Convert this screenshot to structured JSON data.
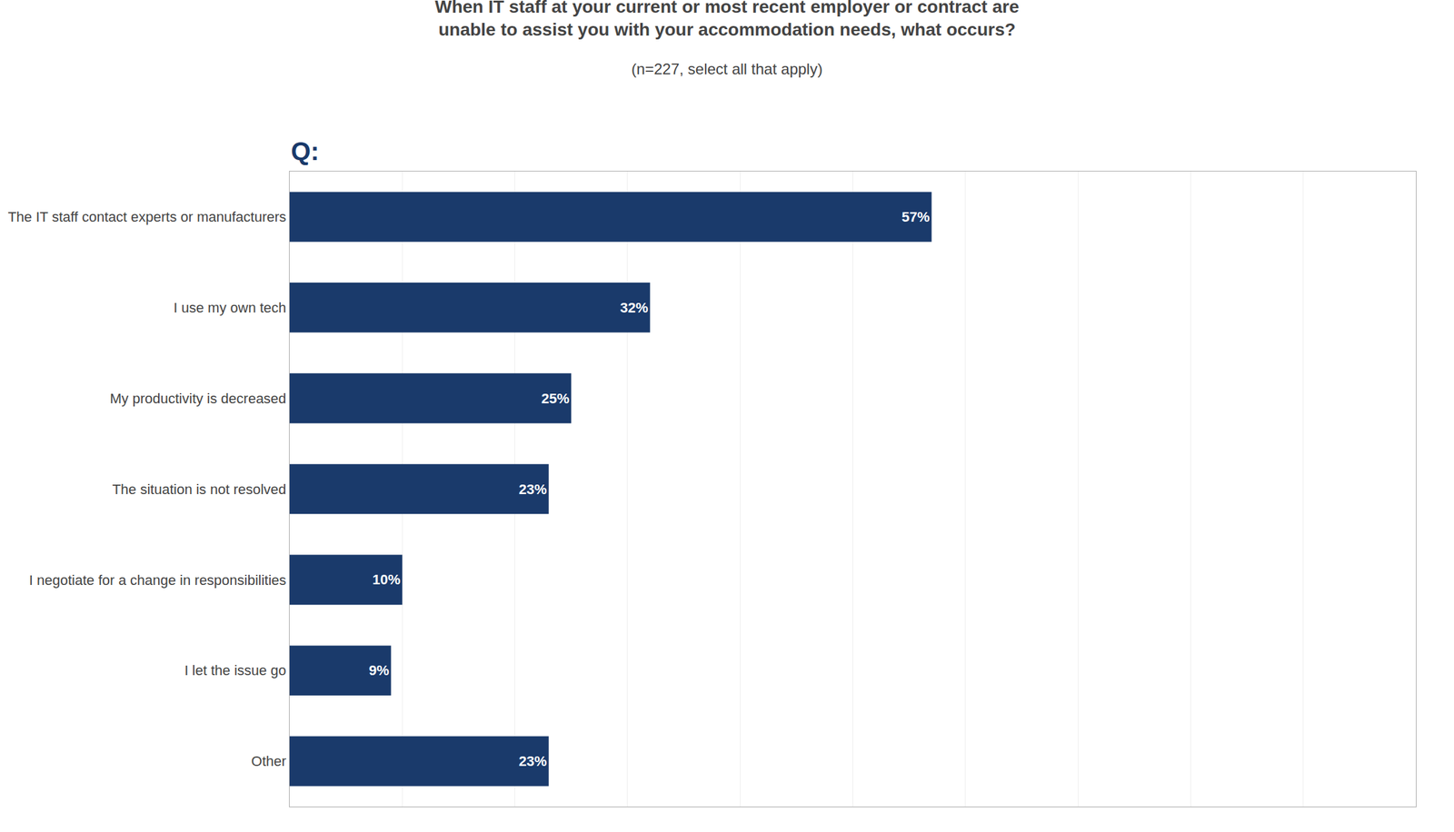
{
  "chart_data": {
    "type": "bar",
    "orientation": "horizontal",
    "title": "When IT staff at your current or most recent employer or contract are\nunable to assist you with your accommodation needs, what occurs?",
    "subtitle": "(n=227, select all that apply)",
    "annotations": [
      "Q:"
    ],
    "categories": [
      "The IT staff contact experts or manufacturers",
      "I use my own tech",
      "My productivity is decreased",
      "The situation is not resolved",
      "I negotiate for a change in responsibilities",
      "I let the issue go",
      "Other"
    ],
    "values": [
      57,
      32,
      25,
      23,
      10,
      9,
      23
    ],
    "value_labels": [
      "57%",
      "32%",
      "25%",
      "23%",
      "10%",
      "9%",
      "23%"
    ],
    "data_labels": true,
    "color": "#1a3a6b",
    "xlim": [
      0,
      100
    ],
    "xticks": [
      0,
      10,
      20,
      30,
      40,
      50,
      60,
      70,
      80,
      90,
      100
    ],
    "tick_labels": "y",
    "grid": true
  }
}
